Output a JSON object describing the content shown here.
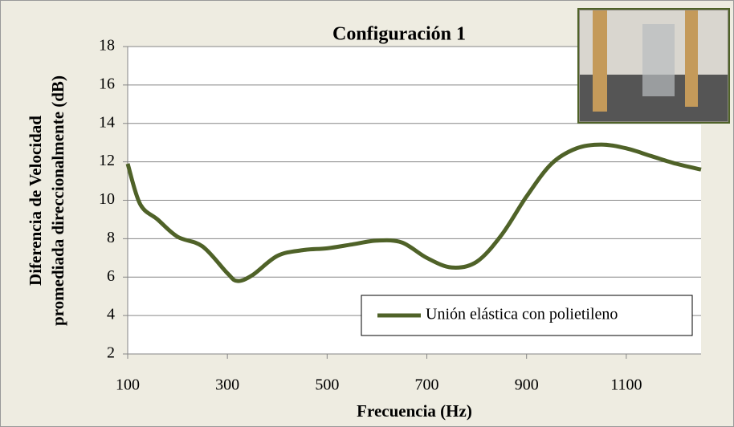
{
  "chart_data": {
    "type": "line",
    "title": "Configuración 1",
    "x_label": "Frecuencia (Hz)",
    "y_label": [
      "Diferencia de Velocidad",
      "promediada direccionalmente (dB)"
    ],
    "x": [
      100,
      125,
      160,
      200,
      250,
      300,
      320,
      350,
      400,
      450,
      500,
      550,
      600,
      650,
      700,
      750,
      800,
      850,
      900,
      950,
      1000,
      1050,
      1100,
      1150,
      1200,
      1250
    ],
    "series": [
      {
        "name": "Unión elástica con polietileno",
        "color": "#4f6228",
        "values": [
          11.9,
          9.8,
          9.0,
          8.1,
          7.6,
          6.2,
          5.8,
          6.1,
          7.1,
          7.4,
          7.5,
          7.7,
          7.9,
          7.8,
          7.0,
          6.5,
          6.8,
          8.2,
          10.2,
          11.9,
          12.7,
          12.9,
          12.7,
          12.3,
          11.9,
          11.6
        ]
      }
    ],
    "xlim": [
      100,
      1250
    ],
    "xticks": [
      100,
      300,
      500,
      700,
      900,
      1100
    ],
    "ylim": [
      2,
      18
    ],
    "yticks": [
      2,
      4,
      6,
      8,
      10,
      12,
      14,
      16,
      18
    ],
    "grid": true,
    "legend": "lower right"
  }
}
